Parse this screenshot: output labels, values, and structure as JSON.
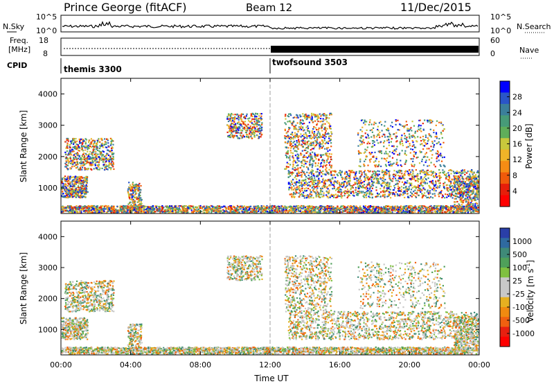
{
  "header": {
    "station": "Prince George (fitACF)",
    "beam": "Beam 12",
    "date": "11/Dec/2015"
  },
  "top_panels": {
    "nsky_label": "N.Sky",
    "nsky_ticks": [
      "10^5",
      "10^0"
    ],
    "nsearch_label": "N.Search",
    "nsearch_ticks": [
      "10^5",
      "10^0"
    ],
    "freq_label_1": "Freq.",
    "freq_label_2": "[MHz]",
    "freq_ticks": [
      "18",
      "8"
    ],
    "nave_label": "Nave",
    "nave_ticks": [
      "60",
      "0"
    ],
    "cpid_label": "CPID",
    "cpid_segments": [
      "themis 3300",
      "twofsound 3503"
    ]
  },
  "chart_data": [
    {
      "type": "heatmap",
      "name": "power",
      "xlabel": "",
      "ylabel": "Slant Range [km]",
      "ylim": [
        180,
        4500
      ],
      "xlim_hours": [
        0,
        24
      ],
      "y_ticks": [
        "1000",
        "2000",
        "3000",
        "4000"
      ],
      "colorbar_label": "Power [dB]",
      "colorbar_ticks": [
        "28",
        "24",
        "20",
        "16",
        "12",
        "8",
        "4"
      ],
      "colorbar_colors": [
        "#0000ff",
        "#2a55c8",
        "#3b7f9b",
        "#479b78",
        "#5fae5a",
        "#c8c83c",
        "#f0b428",
        "#f58c14",
        "#f05a0a",
        "#e61e0a",
        "#ff0000"
      ]
    },
    {
      "type": "heatmap",
      "name": "velocity",
      "xlabel": "Time UT",
      "ylabel": "Slant Range [km]",
      "ylim": [
        180,
        4500
      ],
      "xlim_hours": [
        0,
        24
      ],
      "x_ticks": [
        "00:00",
        "04:00",
        "08:00",
        "12:00",
        "16:00",
        "20:00",
        "00:00"
      ],
      "y_ticks": [
        "1000",
        "2000",
        "3000",
        "4000"
      ],
      "colorbar_label": "Velocity [m s",
      "colorbar_label_sup": "-1",
      "colorbar_label_end": "]",
      "colorbar_ticks": [
        "1000",
        "500",
        "100",
        "25",
        "-25",
        "-100",
        "-500",
        "-1000"
      ],
      "colorbar_colors": [
        "#2a3fa8",
        "#2f6aa0",
        "#3f8a78",
        "#4fa05a",
        "#7fc040",
        "#c8c8c8",
        "#c8c8c8",
        "#e6b020",
        "#f08a10",
        "#f06010",
        "#e82010",
        "#ff0000"
      ]
    }
  ]
}
